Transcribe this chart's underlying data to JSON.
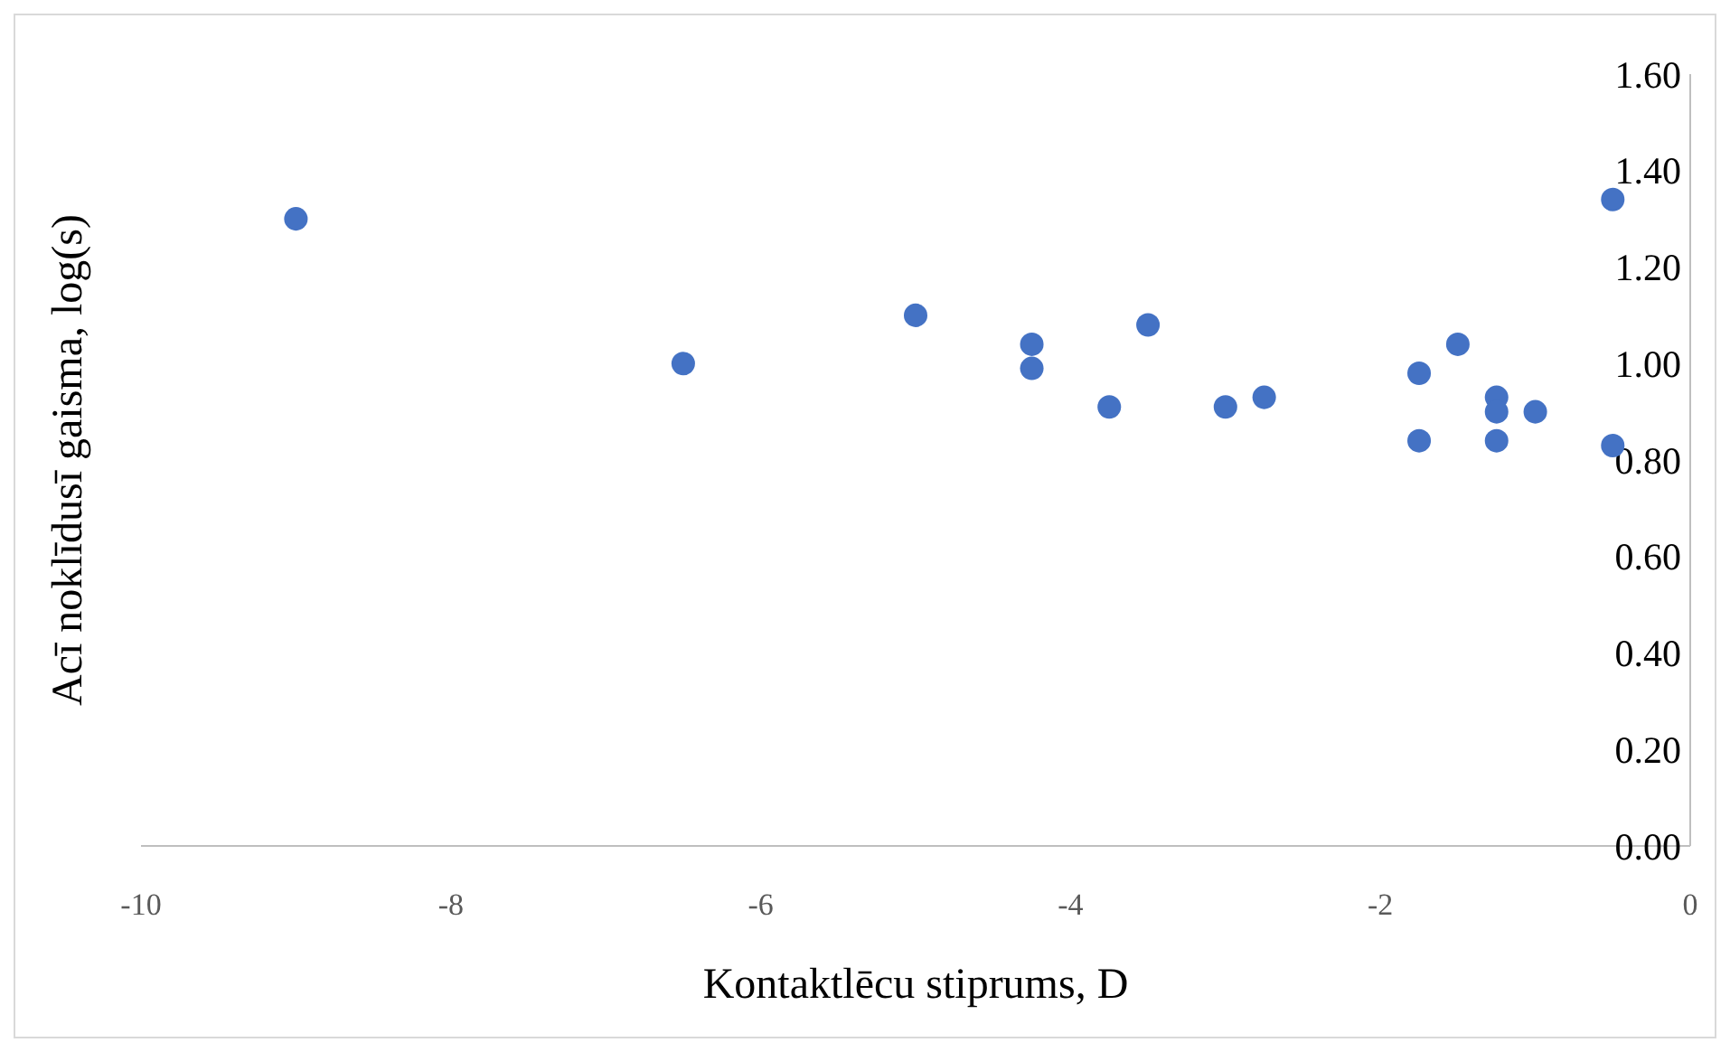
{
  "chart_data": {
    "type": "scatter",
    "xlabel": "Kontaktlēcu stiprums, D",
    "ylabel": "Acī noklīdusī gaisma, log(s)",
    "x": [
      -9,
      -6.5,
      -5,
      -4.25,
      -4.25,
      -3.75,
      -3.5,
      -3,
      -2.75,
      -1.75,
      -1.75,
      -1.5,
      -1.25,
      -1.25,
      -1.25,
      -1,
      -0.5,
      -0.5
    ],
    "series": [
      {
        "color": "#4472c4",
        "values": [
          1.3,
          1.0,
          1.1,
          1.04,
          0.99,
          0.91,
          1.08,
          0.91,
          0.93,
          0.98,
          0.84,
          1.04,
          0.93,
          0.9,
          0.84,
          0.9,
          1.34,
          0.83
        ]
      }
    ],
    "xlim": [
      -10,
      0
    ],
    "xticks": [
      -10,
      -8,
      -6,
      -4,
      -2,
      0
    ],
    "ylim": [
      0,
      1.6
    ],
    "yticks": [
      {
        "value": 0,
        "label": "0.00"
      },
      {
        "value": 0.2,
        "label": "0.20"
      },
      {
        "value": 0.4,
        "label": "0.40"
      },
      {
        "value": 0.6,
        "label": "0.60"
      },
      {
        "value": 0.8,
        "label": "0.80"
      },
      {
        "value": 1.0,
        "label": "1.00"
      },
      {
        "value": 1.2,
        "label": "1.20"
      },
      {
        "value": 1.4,
        "label": "1.40"
      },
      {
        "value": 1.6,
        "label": "1.60"
      }
    ],
    "grid": false,
    "marker": "circle"
  }
}
